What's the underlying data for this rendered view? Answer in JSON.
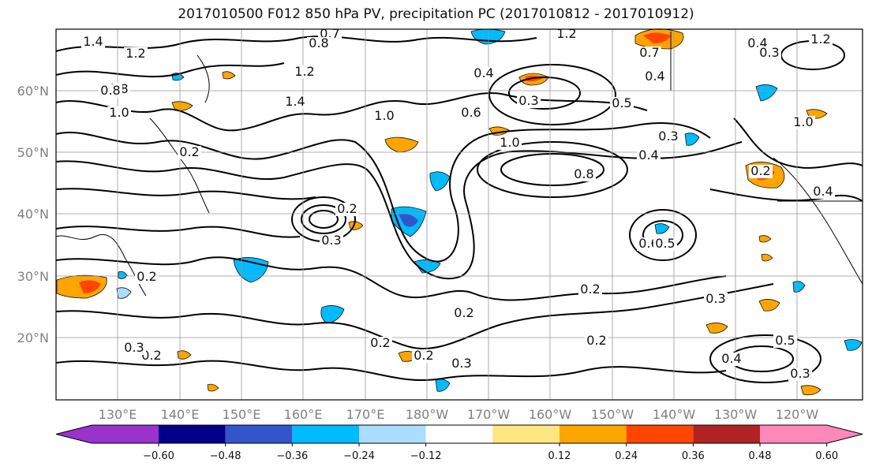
{
  "title": "2017010500 F012 850 hPa PV, precipitation PC (2017010812 - 2017010912)",
  "lat_labels": [
    "60°N",
    "50°N",
    "40°N",
    "30°N",
    "20°N"
  ],
  "lon_labels": [
    "130°E",
    "140°E",
    "150°E",
    "160°E",
    "170°E",
    "180°W",
    "170°W",
    "160°W",
    "150°W",
    "140°W",
    "130°W",
    "120°W"
  ],
  "colorbar": {
    "colors": [
      "#9933cc",
      "#000088",
      "#3355cc",
      "#00bbff",
      "#aaddff",
      "#ffffff",
      "#ffe680",
      "#ffa500",
      "#ff4500",
      "#b22222",
      "#ff88bb"
    ],
    "tick_labels": [
      "−0.60",
      "−0.48",
      "−0.36",
      "−0.24",
      "−0.12",
      "0.12",
      "0.24",
      "0.36",
      "0.48",
      "0.60"
    ]
  },
  "contour_labels": [
    {
      "text": "1.4"
    },
    {
      "text": "0.8"
    },
    {
      "text": "1.2"
    },
    {
      "text": "0.7"
    },
    {
      "text": "0.8"
    },
    {
      "text": "1.2"
    },
    {
      "text": "0.8"
    },
    {
      "text": "1.0"
    },
    {
      "text": "1.2"
    },
    {
      "text": "1.4"
    },
    {
      "text": "1.0"
    },
    {
      "text": "0.4"
    },
    {
      "text": "0.6"
    },
    {
      "text": "0.3"
    },
    {
      "text": "1.0"
    },
    {
      "text": "0.7"
    },
    {
      "text": "0.4"
    },
    {
      "text": "0.8"
    },
    {
      "text": "0.4"
    },
    {
      "text": "0.3"
    },
    {
      "text": "0.6"
    },
    {
      "text": "0.5"
    },
    {
      "text": "0.2"
    },
    {
      "text": "0.3"
    },
    {
      "text": "0.2"
    },
    {
      "text": "0.2"
    },
    {
      "text": "0.2"
    },
    {
      "text": "0.3"
    },
    {
      "text": "0.2"
    },
    {
      "text": "0.2"
    },
    {
      "text": "0.2"
    },
    {
      "text": "0.3"
    },
    {
      "text": "0.2"
    },
    {
      "text": "0.5"
    },
    {
      "text": "0.3"
    },
    {
      "text": "0.4"
    },
    {
      "text": "0.3"
    },
    {
      "text": "0.2"
    },
    {
      "text": "0.4"
    },
    {
      "text": "0.2"
    },
    {
      "text": "1.0"
    },
    {
      "text": "0.5"
    },
    {
      "text": "1.2"
    },
    {
      "text": "0.4"
    },
    {
      "text": "0.3"
    }
  ]
}
